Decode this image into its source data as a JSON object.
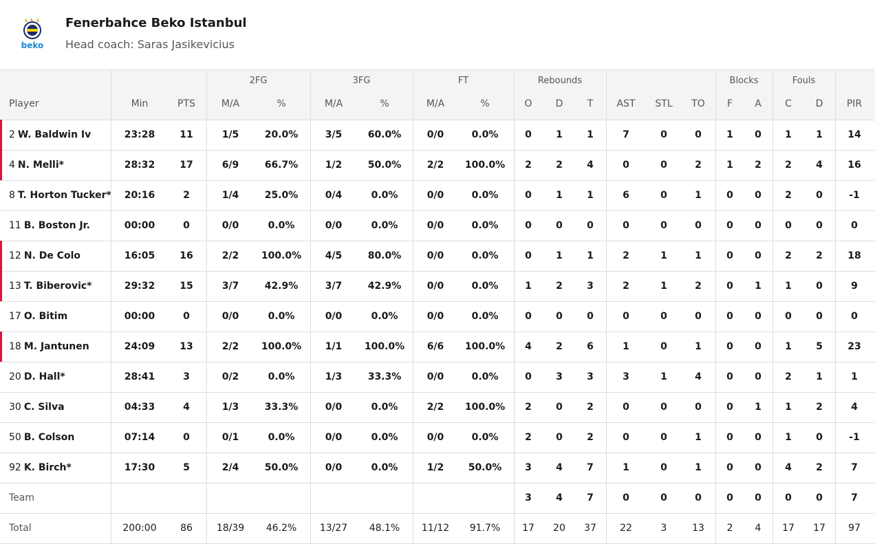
{
  "header": {
    "logo_text": "beko",
    "title": "Fenerbahce Beko Istanbul",
    "subtitle": "Head coach: Saras Jasikevicius"
  },
  "table": {
    "player_header": "Player",
    "column_groups": [
      {
        "columns": [
          "Min",
          "PTS"
        ]
      },
      {
        "label": "2FG",
        "columns": [
          "M/A",
          "%"
        ]
      },
      {
        "label": "3FG",
        "columns": [
          "M/A",
          "%"
        ]
      },
      {
        "label": "FT",
        "columns": [
          "M/A",
          "%"
        ]
      },
      {
        "label": "Rebounds",
        "columns": [
          "O",
          "D",
          "T"
        ]
      },
      {
        "columns": [
          "AST",
          "STL",
          "TO"
        ]
      },
      {
        "label": "Blocks",
        "columns": [
          "F",
          "A"
        ]
      },
      {
        "label": "Fouls",
        "columns": [
          "C",
          "D"
        ]
      },
      {
        "columns": [
          "PIR"
        ]
      }
    ],
    "players": [
      {
        "number": "2",
        "name": "W. Baldwin Iv",
        "starter": true,
        "stats": [
          "23:28",
          "11",
          "1/5",
          "20.0%",
          "3/5",
          "60.0%",
          "0/0",
          "0.0%",
          "0",
          "1",
          "1",
          "7",
          "0",
          "0",
          "1",
          "0",
          "1",
          "1",
          "14"
        ]
      },
      {
        "number": "4",
        "name": "N. Melli*",
        "starter": true,
        "stats": [
          "28:32",
          "17",
          "6/9",
          "66.7%",
          "1/2",
          "50.0%",
          "2/2",
          "100.0%",
          "2",
          "2",
          "4",
          "0",
          "0",
          "2",
          "1",
          "2",
          "2",
          "4",
          "16"
        ]
      },
      {
        "number": "8",
        "name": "T. Horton Tucker*",
        "starter": false,
        "stats": [
          "20:16",
          "2",
          "1/4",
          "25.0%",
          "0/4",
          "0.0%",
          "0/0",
          "0.0%",
          "0",
          "1",
          "1",
          "6",
          "0",
          "1",
          "0",
          "0",
          "2",
          "0",
          "-1"
        ]
      },
      {
        "number": "11",
        "name": "B. Boston Jr.",
        "starter": false,
        "stats": [
          "00:00",
          "0",
          "0/0",
          "0.0%",
          "0/0",
          "0.0%",
          "0/0",
          "0.0%",
          "0",
          "0",
          "0",
          "0",
          "0",
          "0",
          "0",
          "0",
          "0",
          "0",
          "0"
        ]
      },
      {
        "number": "12",
        "name": "N. De Colo",
        "starter": true,
        "stats": [
          "16:05",
          "16",
          "2/2",
          "100.0%",
          "4/5",
          "80.0%",
          "0/0",
          "0.0%",
          "0",
          "1",
          "1",
          "2",
          "1",
          "1",
          "0",
          "0",
          "2",
          "2",
          "18"
        ]
      },
      {
        "number": "13",
        "name": "T. Biberovic*",
        "starter": true,
        "stats": [
          "29:32",
          "15",
          "3/7",
          "42.9%",
          "3/7",
          "42.9%",
          "0/0",
          "0.0%",
          "1",
          "2",
          "3",
          "2",
          "1",
          "2",
          "0",
          "1",
          "1",
          "0",
          "9"
        ]
      },
      {
        "number": "17",
        "name": "O. Bitim",
        "starter": false,
        "stats": [
          "00:00",
          "0",
          "0/0",
          "0.0%",
          "0/0",
          "0.0%",
          "0/0",
          "0.0%",
          "0",
          "0",
          "0",
          "0",
          "0",
          "0",
          "0",
          "0",
          "0",
          "0",
          "0"
        ]
      },
      {
        "number": "18",
        "name": "M. Jantunen",
        "starter": true,
        "stats": [
          "24:09",
          "13",
          "2/2",
          "100.0%",
          "1/1",
          "100.0%",
          "6/6",
          "100.0%",
          "4",
          "2",
          "6",
          "1",
          "0",
          "1",
          "0",
          "0",
          "1",
          "5",
          "23"
        ]
      },
      {
        "number": "20",
        "name": "D. Hall*",
        "starter": false,
        "stats": [
          "28:41",
          "3",
          "0/2",
          "0.0%",
          "1/3",
          "33.3%",
          "0/0",
          "0.0%",
          "0",
          "3",
          "3",
          "3",
          "1",
          "4",
          "0",
          "0",
          "2",
          "1",
          "1"
        ]
      },
      {
        "number": "30",
        "name": "C. Silva",
        "starter": false,
        "stats": [
          "04:33",
          "4",
          "1/3",
          "33.3%",
          "0/0",
          "0.0%",
          "2/2",
          "100.0%",
          "2",
          "0",
          "2",
          "0",
          "0",
          "0",
          "0",
          "1",
          "1",
          "2",
          "4"
        ]
      },
      {
        "number": "50",
        "name": "B. Colson",
        "starter": false,
        "stats": [
          "07:14",
          "0",
          "0/1",
          "0.0%",
          "0/0",
          "0.0%",
          "0/0",
          "0.0%",
          "2",
          "0",
          "2",
          "0",
          "0",
          "1",
          "0",
          "0",
          "1",
          "0",
          "-1"
        ]
      },
      {
        "number": "92",
        "name": "K. Birch*",
        "starter": false,
        "stats": [
          "17:30",
          "5",
          "2/4",
          "50.0%",
          "0/0",
          "0.0%",
          "1/2",
          "50.0%",
          "3",
          "4",
          "7",
          "1",
          "0",
          "1",
          "0",
          "0",
          "4",
          "2",
          "7"
        ]
      }
    ],
    "team": {
      "label": "Team",
      "stats": [
        null,
        null,
        null,
        null,
        null,
        null,
        null,
        null,
        "3",
        "4",
        "7",
        "0",
        "0",
        "0",
        "0",
        "0",
        "0",
        "0",
        "7"
      ]
    },
    "total": {
      "label": "Total",
      "stats": [
        "200:00",
        "86",
        "18/39",
        "46.2%",
        "13/27",
        "48.1%",
        "11/12",
        "91.7%",
        "17",
        "20",
        "37",
        "22",
        "3",
        "13",
        "2",
        "4",
        "17",
        "17",
        "97"
      ]
    }
  }
}
